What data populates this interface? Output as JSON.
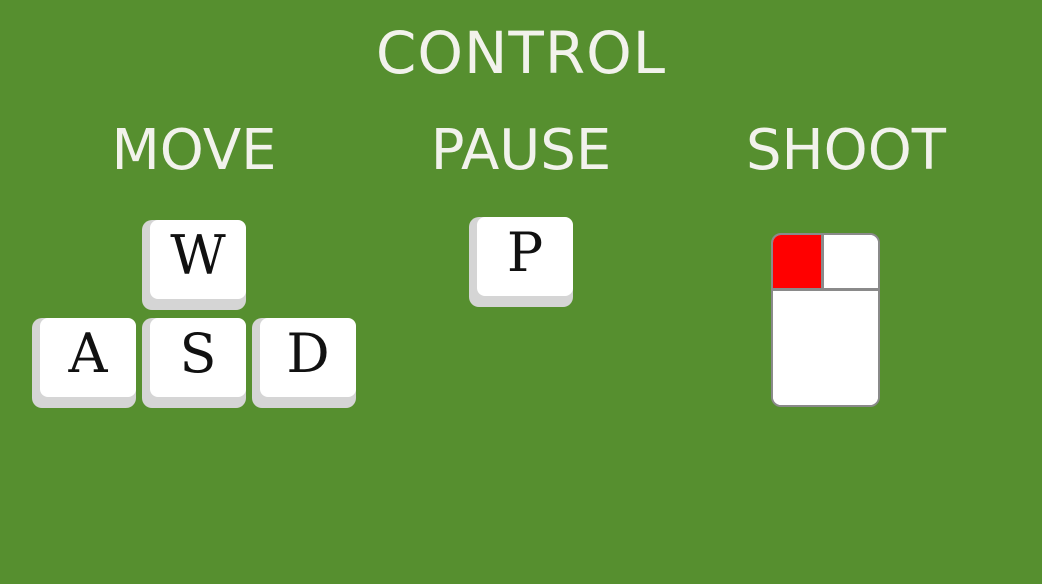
{
  "title": "CONTROL",
  "sections": {
    "move": {
      "label": "MOVE",
      "keys": {
        "w": "W",
        "a": "A",
        "s": "S",
        "d": "D"
      }
    },
    "pause": {
      "label": "PAUSE",
      "keys": {
        "p": "P"
      }
    },
    "shoot": {
      "label": "SHOOT",
      "mouse": {
        "highlighted_button": "left",
        "highlight_color": "#ff0000"
      }
    }
  },
  "colors": {
    "background": "#568f2f",
    "text": "#f2f2ec",
    "key_cap": "#ffffff",
    "key_shadow": "#d5d5d5",
    "mouse_outline": "#8a8a8a"
  }
}
